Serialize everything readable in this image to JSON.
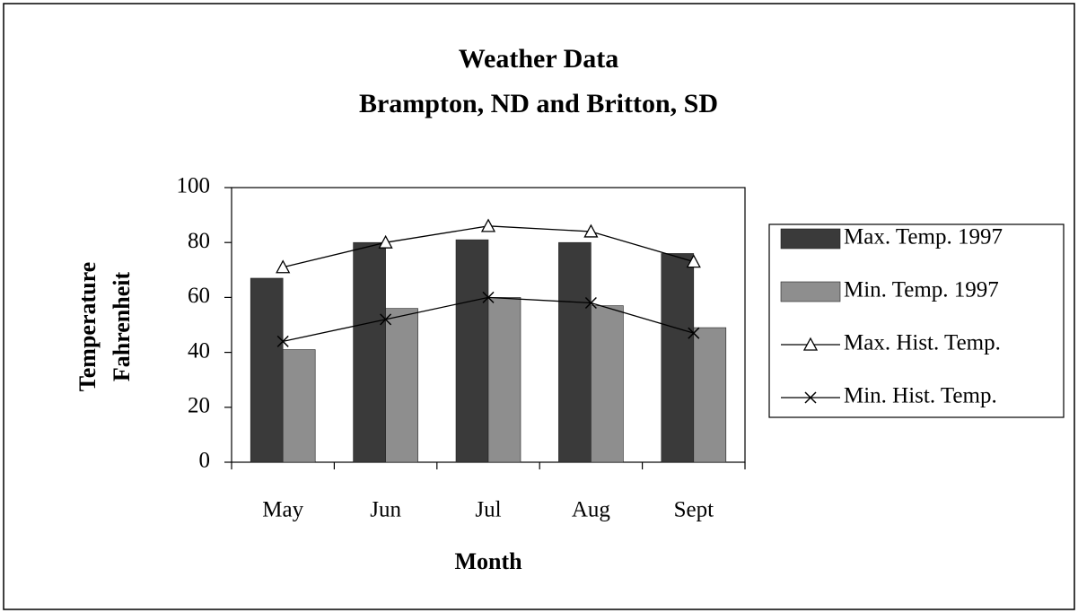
{
  "chart_data": {
    "type": "bar",
    "title": "Weather Data",
    "subtitle": "Brampton, ND and Britton, SD",
    "xlabel": "Month",
    "ylabel": [
      "Temperature",
      "Fahrenheit"
    ],
    "categories": [
      "May",
      "Jun",
      "Jul",
      "Aug",
      "Sept"
    ],
    "series": [
      {
        "name": "Max. Temp. 1997",
        "type": "bar",
        "color": "#3a3a3a",
        "values": [
          67,
          80,
          81,
          80,
          76
        ]
      },
      {
        "name": "Min. Temp. 1997",
        "type": "bar",
        "color": "#8e8e8e",
        "values": [
          41,
          56,
          60,
          57,
          49
        ]
      },
      {
        "name": "Max. Hist. Temp.",
        "type": "line",
        "marker": "triangle",
        "color": "#000000",
        "values": [
          71,
          80,
          86,
          84,
          73
        ]
      },
      {
        "name": "Min. Hist. Temp.",
        "type": "line",
        "marker": "x",
        "color": "#000000",
        "values": [
          44,
          52,
          60,
          58,
          47
        ]
      }
    ],
    "ylim": [
      0,
      100
    ],
    "yticks": [
      0,
      20,
      40,
      60,
      80,
      100
    ],
    "grid": false,
    "legend": "right"
  }
}
